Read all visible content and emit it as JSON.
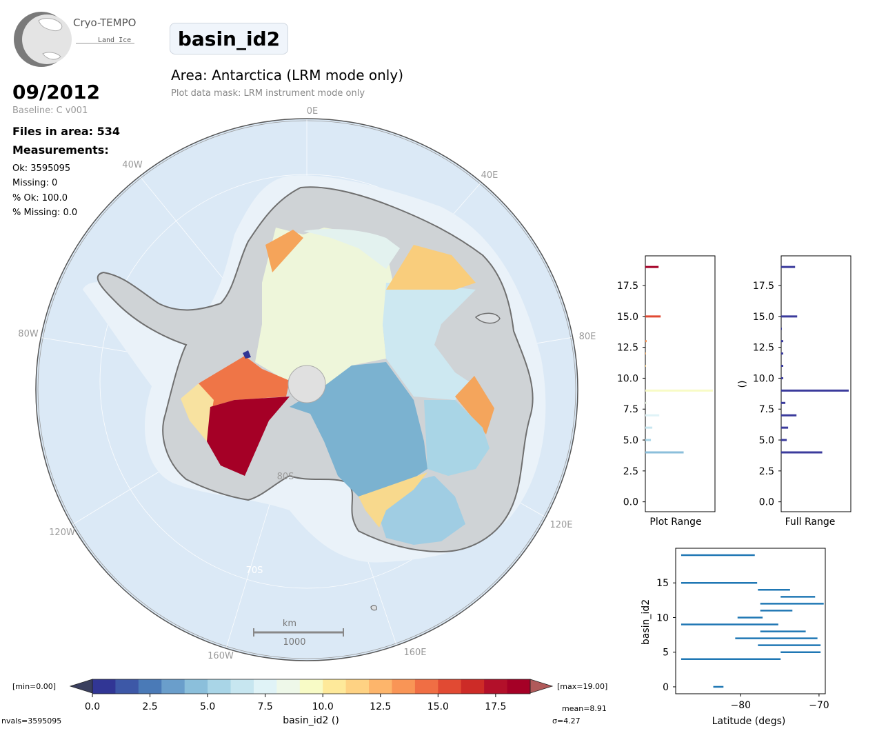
{
  "logo": {
    "name": "Cryo-TEMPO",
    "sub": "Land Ice"
  },
  "title": "basin_id2",
  "area_title": "Area: Antarctica (LRM mode only)",
  "mask_text": "Plot data mask: LRM instrument mode only",
  "date": "09/2012",
  "baseline": "Baseline: C v001",
  "files_in_area": "Files in area: 534",
  "measurements_heading": "Measurements:",
  "stats": {
    "ok": "Ok: 3595095",
    "missing": "Missing: 0",
    "pct_ok": "% Ok: 100.0",
    "pct_missing": "% Missing: 0.0"
  },
  "map": {
    "lon_labels": [
      "0E",
      "40E",
      "80E",
      "120E",
      "160E",
      "160W",
      "120W",
      "80W",
      "40W"
    ],
    "lat_labels": [
      "80S",
      "70S"
    ],
    "scale_unit": "km",
    "scale_value": "1000"
  },
  "colorbar": {
    "min_label": "[min=0.00]",
    "max_label": "[max=19.00]",
    "ticks": [
      "0.0",
      "2.5",
      "5.0",
      "7.5",
      "10.0",
      "12.5",
      "15.0",
      "17.5"
    ],
    "label": "basin_id2 ()",
    "nvals": "nvals=3595095",
    "mean": "mean=8.91",
    "sigma": "σ=4.27",
    "colors": [
      "#313695",
      "#3d58a7",
      "#4a7ab7",
      "#6a9ecb",
      "#8bbfdb",
      "#a9d5e7",
      "#c7e6f0",
      "#e0f3f7",
      "#eef8e9",
      "#f8fbc6",
      "#fee99a",
      "#fed283",
      "#fdb56b",
      "#f99556",
      "#f06e44",
      "#e14a33",
      "#cd2b27",
      "#b3102a",
      "#a50026"
    ]
  },
  "chart_data": [
    {
      "type": "bar",
      "orientation": "horizontal",
      "title": "",
      "xlabel": "Plot Range",
      "ylabel": "",
      "ylim": [
        -0.8,
        19.9
      ],
      "yticks": [
        "0.0",
        "2.5",
        "5.0",
        "7.5",
        "10.0",
        "12.5",
        "15.0",
        "17.5"
      ],
      "categories": [
        0,
        1,
        2,
        3,
        4,
        5,
        6,
        7,
        8,
        9,
        10,
        11,
        12,
        13,
        14,
        15,
        16,
        17,
        18,
        19
      ],
      "values": [
        0,
        0,
        0,
        0,
        0.55,
        0.08,
        0.1,
        0.2,
        0.02,
        0.97,
        0,
        0.01,
        0.01,
        0.02,
        0,
        0.22,
        0,
        0,
        0,
        0.19
      ]
    },
    {
      "type": "bar",
      "orientation": "horizontal",
      "title": "",
      "xlabel": "Full Range",
      "ylabel": "()",
      "ylim": [
        -0.8,
        19.9
      ],
      "yticks": [
        "0.0",
        "2.5",
        "5.0",
        "7.5",
        "10.0",
        "12.5",
        "15.0",
        "17.5"
      ],
      "categories": [
        0,
        1,
        2,
        3,
        4,
        5,
        6,
        7,
        8,
        9,
        10,
        11,
        12,
        13,
        14,
        15,
        16,
        17,
        18,
        19
      ],
      "values": [
        0,
        0,
        0,
        0,
        0.59,
        0.08,
        0.1,
        0.22,
        0.06,
        0.97,
        0.03,
        0.03,
        0.03,
        0.03,
        0.01,
        0.23,
        0,
        0,
        0,
        0.2
      ]
    },
    {
      "type": "range",
      "title": "",
      "xlabel": "Latitude (degs)",
      "ylabel": "basin_id2",
      "xlim": [
        -88.3,
        -69.2
      ],
      "ylim": [
        -1,
        20
      ],
      "xticks": [
        "−80",
        "−70"
      ],
      "yticks": [
        "0",
        "5",
        "10",
        "15"
      ],
      "ranges": [
        {
          "y": 0,
          "min": -83.5,
          "max": -82.2
        },
        {
          "y": 4,
          "min": -87.6,
          "max": -74.9
        },
        {
          "y": 5,
          "min": -74.9,
          "max": -69.8
        },
        {
          "y": 6,
          "min": -77.8,
          "max": -69.8
        },
        {
          "y": 7,
          "min": -80.7,
          "max": -70.2
        },
        {
          "y": 8,
          "min": -77.5,
          "max": -71.7
        },
        {
          "y": 9,
          "min": -87.6,
          "max": -75.2
        },
        {
          "y": 10,
          "min": -80.4,
          "max": -77.2
        },
        {
          "y": 11,
          "min": -77.5,
          "max": -73.4
        },
        {
          "y": 12,
          "min": -77.5,
          "max": -69.4
        },
        {
          "y": 13,
          "min": -74.9,
          "max": -70.5
        },
        {
          "y": 14,
          "min": -77.8,
          "max": -73.7
        },
        {
          "y": 15,
          "min": -87.6,
          "max": -77.9
        },
        {
          "y": 19,
          "min": -87.6,
          "max": -78.2
        }
      ]
    }
  ]
}
